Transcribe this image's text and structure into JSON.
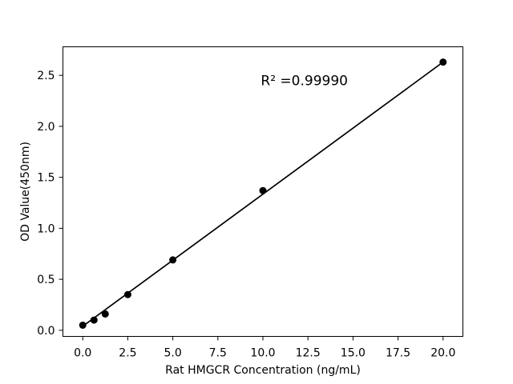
{
  "figure": {
    "background": "#ffffff"
  },
  "chart_data": {
    "type": "scatter",
    "title": "",
    "xlabel": "Rat HMGCR Concentration (ng/mL)",
    "ylabel": "OD Value(450nm)",
    "annotation": {
      "text": "R² =0.99990",
      "x": 12.3,
      "y": 2.45
    },
    "points": {
      "x": [
        0,
        0.625,
        1.25,
        2.5,
        5,
        10,
        20
      ],
      "y": [
        0.05,
        0.1,
        0.16,
        0.35,
        0.69,
        1.37,
        2.63
      ]
    },
    "fit_line": {
      "x": [
        0,
        20
      ],
      "y": [
        0.04,
        2.63
      ]
    },
    "xlim": [
      -1.1,
      21.1
    ],
    "ylim": [
      -0.06,
      2.78
    ],
    "xtick_values": [
      0,
      2.5,
      5,
      7.5,
      10,
      12.5,
      15,
      17.5,
      20
    ],
    "xtick_labels": [
      "0.0",
      "2.5",
      "5.0",
      "7.5",
      "10.0",
      "12.5",
      "15.0",
      "17.5",
      "20.0"
    ],
    "ytick_values": [
      0,
      0.5,
      1.0,
      1.5,
      2.0,
      2.5
    ],
    "ytick_labels": [
      "0.0",
      "0.5",
      "1.0",
      "1.5",
      "2.0",
      "2.5"
    ],
    "grid": false,
    "legend": null,
    "marker_color": "#000000",
    "line_color": "#000000",
    "spine_color": "#000000",
    "text_color": "#000000"
  }
}
